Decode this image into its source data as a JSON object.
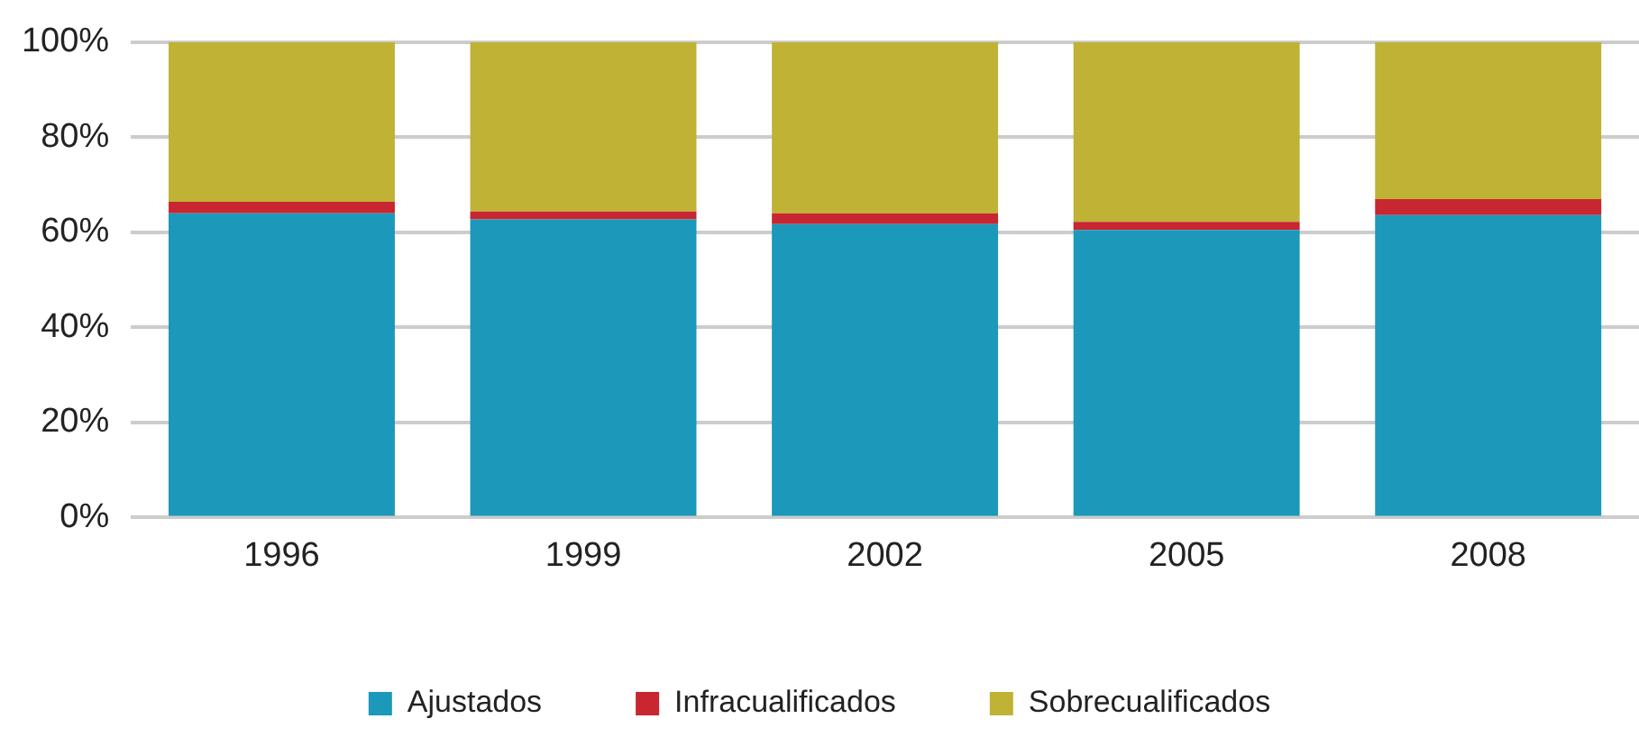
{
  "chart_data": {
    "type": "bar",
    "stacked": true,
    "categories": [
      "1996",
      "1999",
      "2002",
      "2005",
      "2008"
    ],
    "series": [
      {
        "name": "Ajustados",
        "color": "#1b98ba",
        "values": [
          64,
          62.7,
          61.7,
          60.5,
          63.6
        ]
      },
      {
        "name": "Infracualificados",
        "color": "#c82630",
        "values": [
          2.4,
          1.7,
          2.3,
          1.7,
          3.4
        ]
      },
      {
        "name": "Sobrecualificados",
        "color": "#bfb235",
        "values": [
          33.6,
          35.6,
          36,
          37.8,
          33
        ]
      }
    ],
    "ylim": [
      0,
      100
    ],
    "yticks": [
      {
        "value": 0,
        "label": "0%"
      },
      {
        "value": 20,
        "label": "20%"
      },
      {
        "value": 40,
        "label": "40%"
      },
      {
        "value": 60,
        "label": "60%"
      },
      {
        "value": 80,
        "label": "80%"
      },
      {
        "value": 100,
        "label": "100%"
      }
    ],
    "grid": "y",
    "legend": "bottom"
  }
}
